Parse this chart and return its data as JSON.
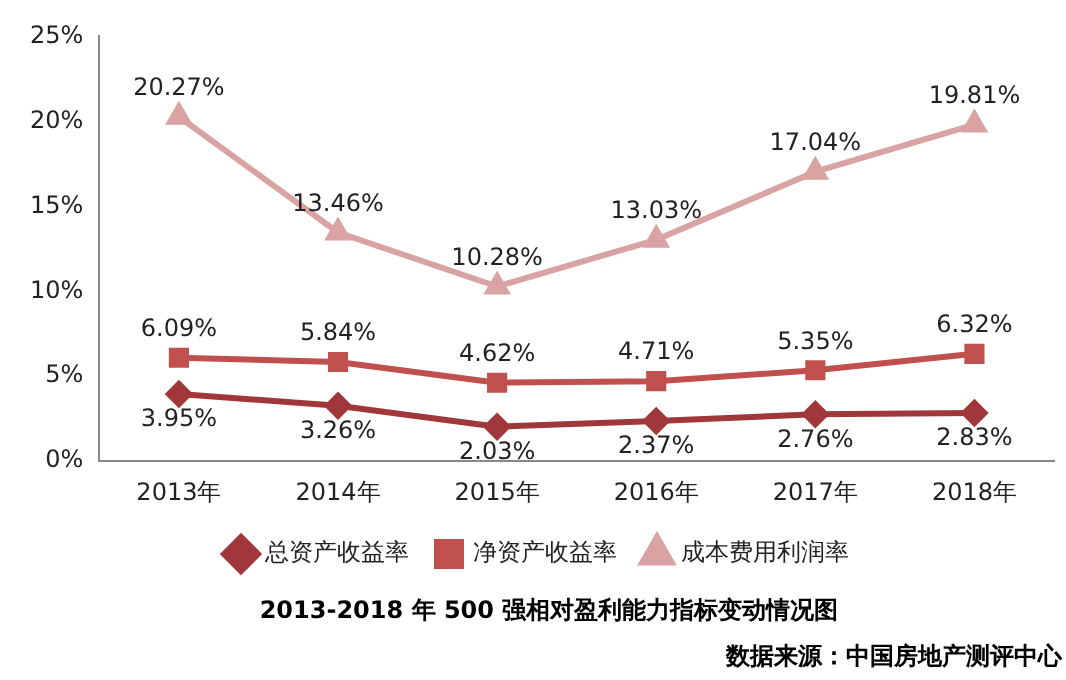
{
  "chart_data": {
    "type": "line",
    "title": "2013-2018 年 500 强相对盈利能力指标变动情况图",
    "annotations": [
      "数据来源：中国房地产测评中心"
    ],
    "categories": [
      "2013年",
      "2014年",
      "2015年",
      "2016年",
      "2017年",
      "2018年"
    ],
    "ylim": [
      0,
      25
    ],
    "yticks": [
      {
        "value": 0,
        "label": "0%"
      },
      {
        "value": 5,
        "label": "5%"
      },
      {
        "value": 10,
        "label": "10%"
      },
      {
        "value": 15,
        "label": "15%"
      },
      {
        "value": 20,
        "label": "20%"
      },
      {
        "value": 25,
        "label": "25%"
      }
    ],
    "grid": false,
    "legend": "bottom",
    "line_style": "solid",
    "series": [
      {
        "name": "总资产收益率",
        "color": "#a0373a",
        "marker": "diamond",
        "values": [
          3.95,
          3.26,
          2.03,
          2.37,
          2.76,
          2.83
        ],
        "value_labels": [
          "3.95%",
          "3.26%",
          "2.03%",
          "2.37%",
          "2.76%",
          "2.83%"
        ]
      },
      {
        "name": "净资产收益率",
        "color": "#c0504d",
        "marker": "square",
        "values": [
          6.09,
          5.84,
          4.62,
          4.71,
          5.35,
          6.32
        ],
        "value_labels": [
          "6.09%",
          "5.84%",
          "4.62%",
          "4.71%",
          "5.35%",
          "6.32%"
        ]
      },
      {
        "name": "成本费用利润率",
        "color": "#d9a3a3",
        "marker": "triangle",
        "values": [
          20.27,
          13.46,
          10.28,
          13.03,
          17.04,
          19.81
        ],
        "value_labels": [
          "20.27%",
          "13.46%",
          "10.28%",
          "13.03%",
          "17.04%",
          "19.81%"
        ]
      }
    ]
  }
}
